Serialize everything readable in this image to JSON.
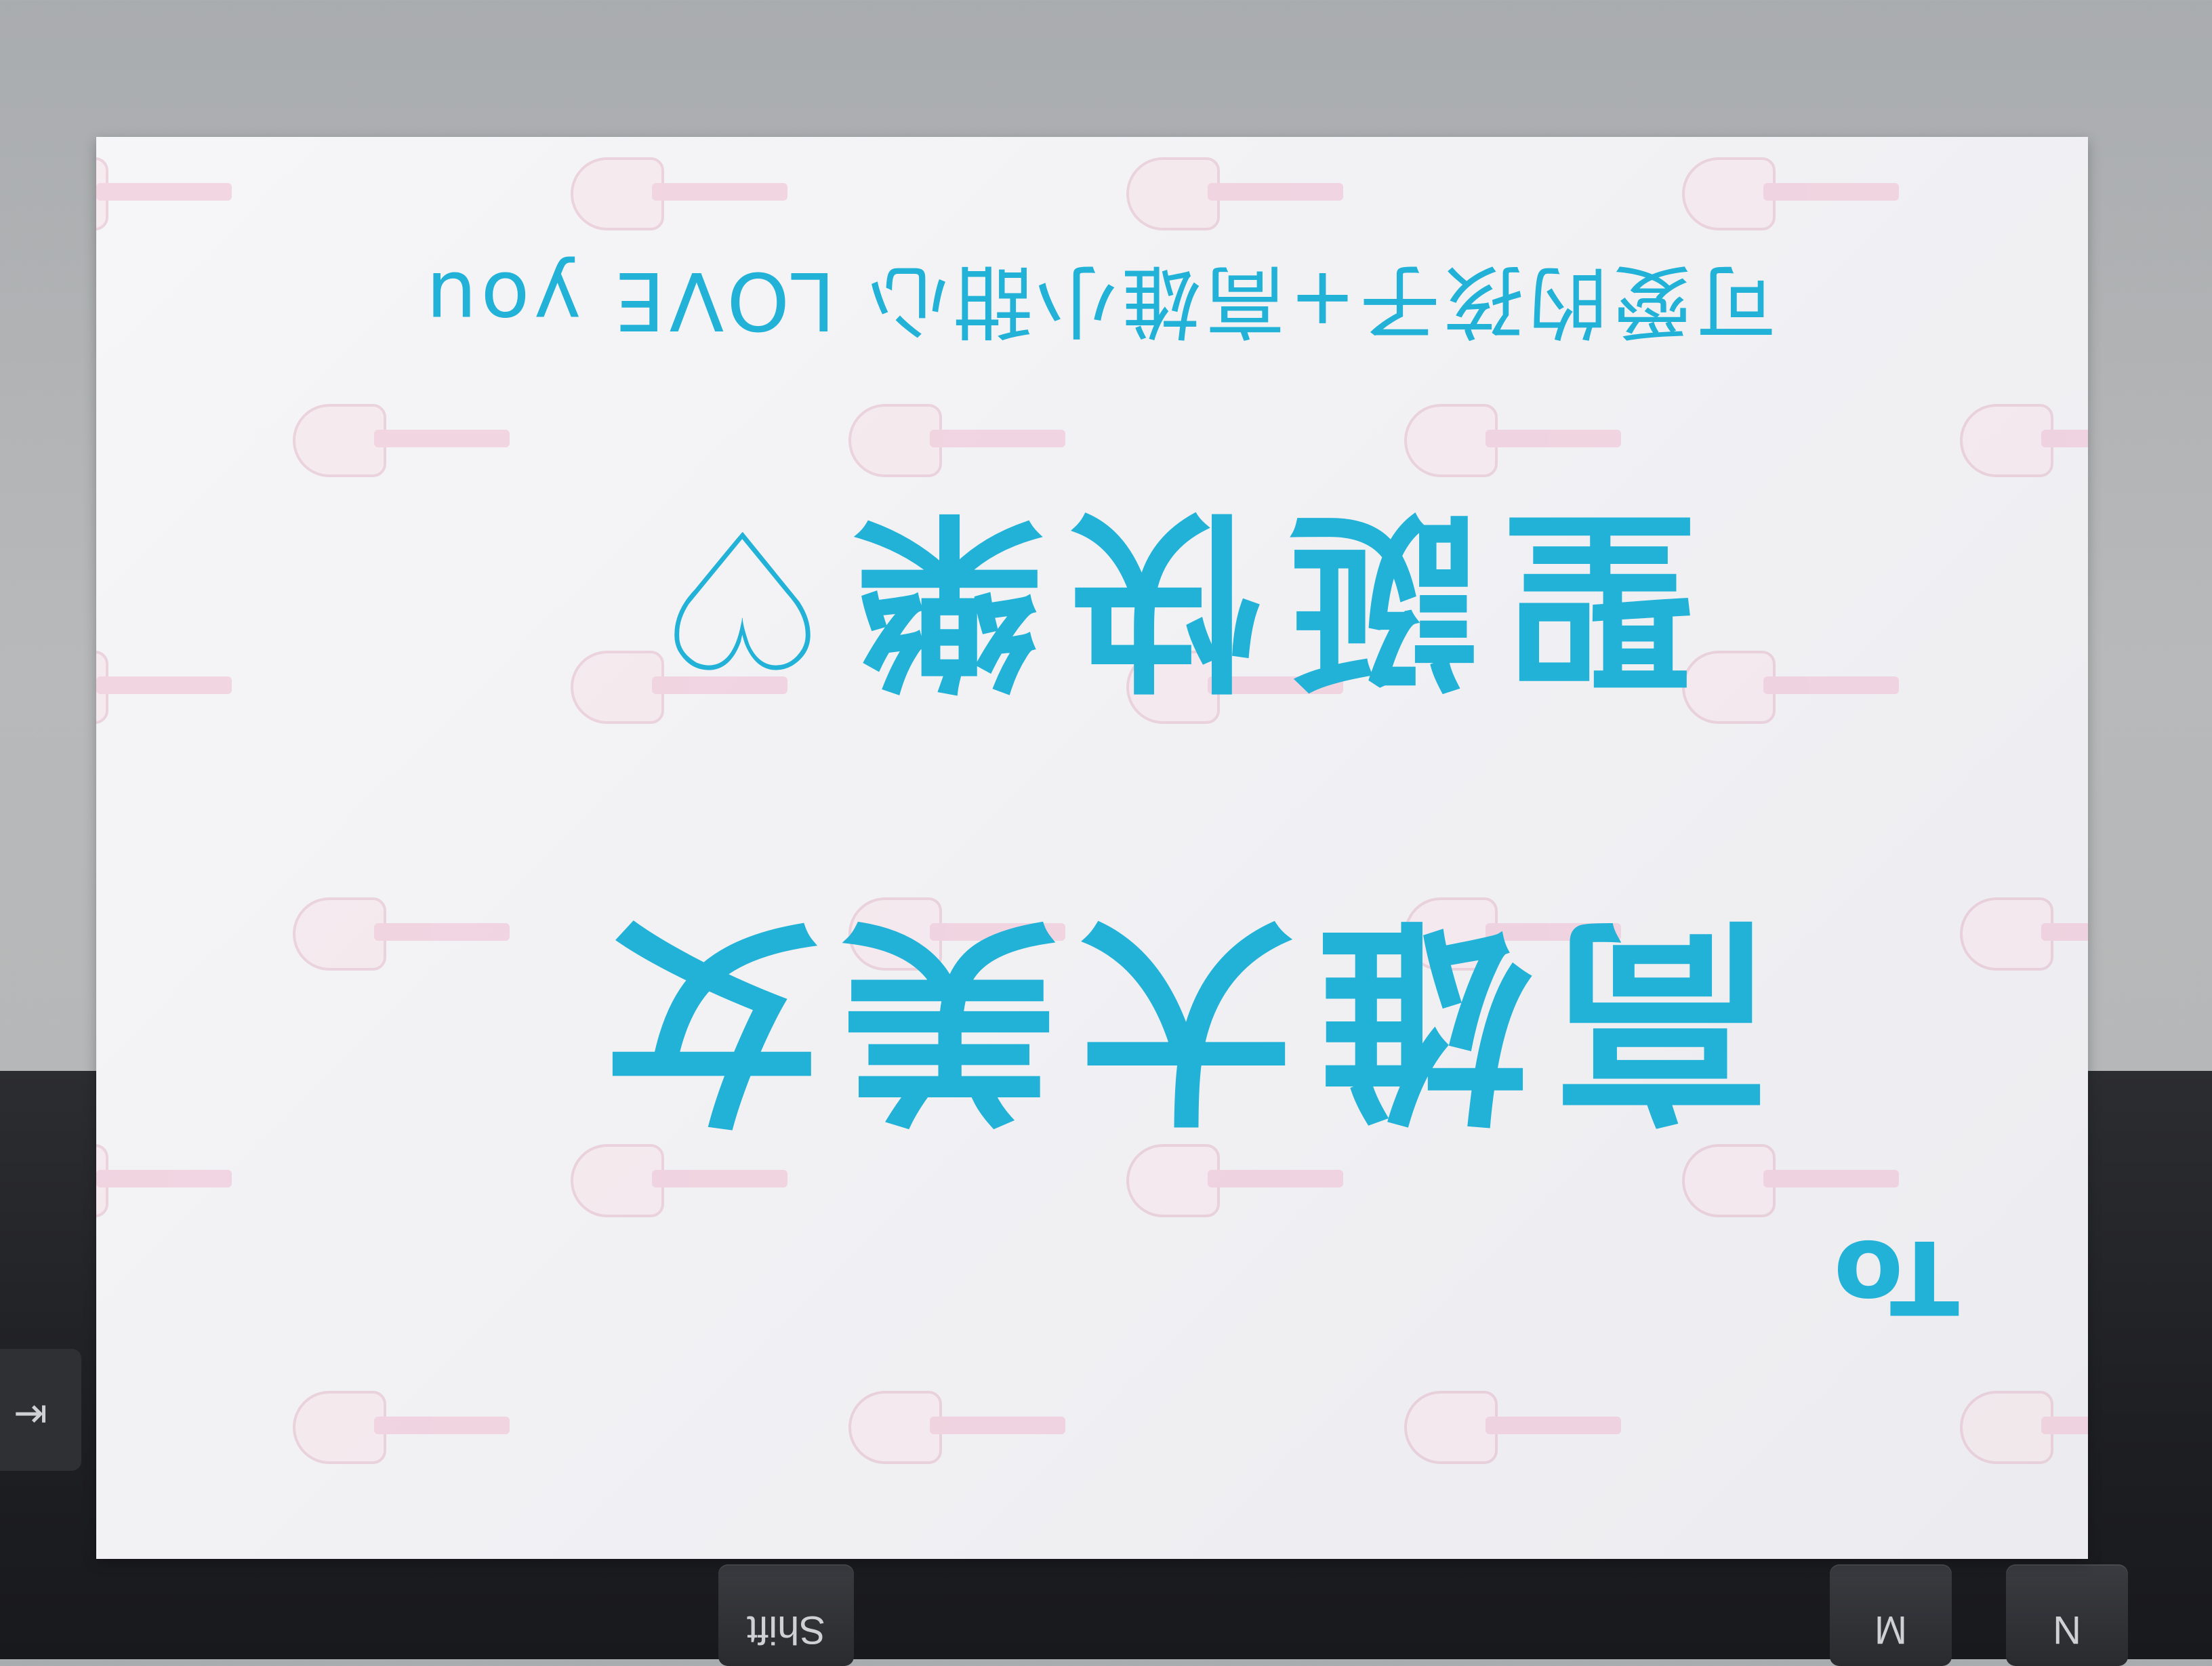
{
  "card": {
    "greeting": "To",
    "recipient": "高雄大美女",
    "message": "聖誕快樂♡",
    "signoff": "可愛的孩子+高雄小甜心 LOVE you"
  },
  "colors": {
    "ink": "#22b2d8",
    "pattern_pink": "#efbcd0",
    "paper": "#f3f3f6",
    "keyboard": "#1e1f23"
  },
  "keyboard": {
    "keys": [
      "Shift",
      "M",
      "N"
    ],
    "side_key": "⇥"
  }
}
